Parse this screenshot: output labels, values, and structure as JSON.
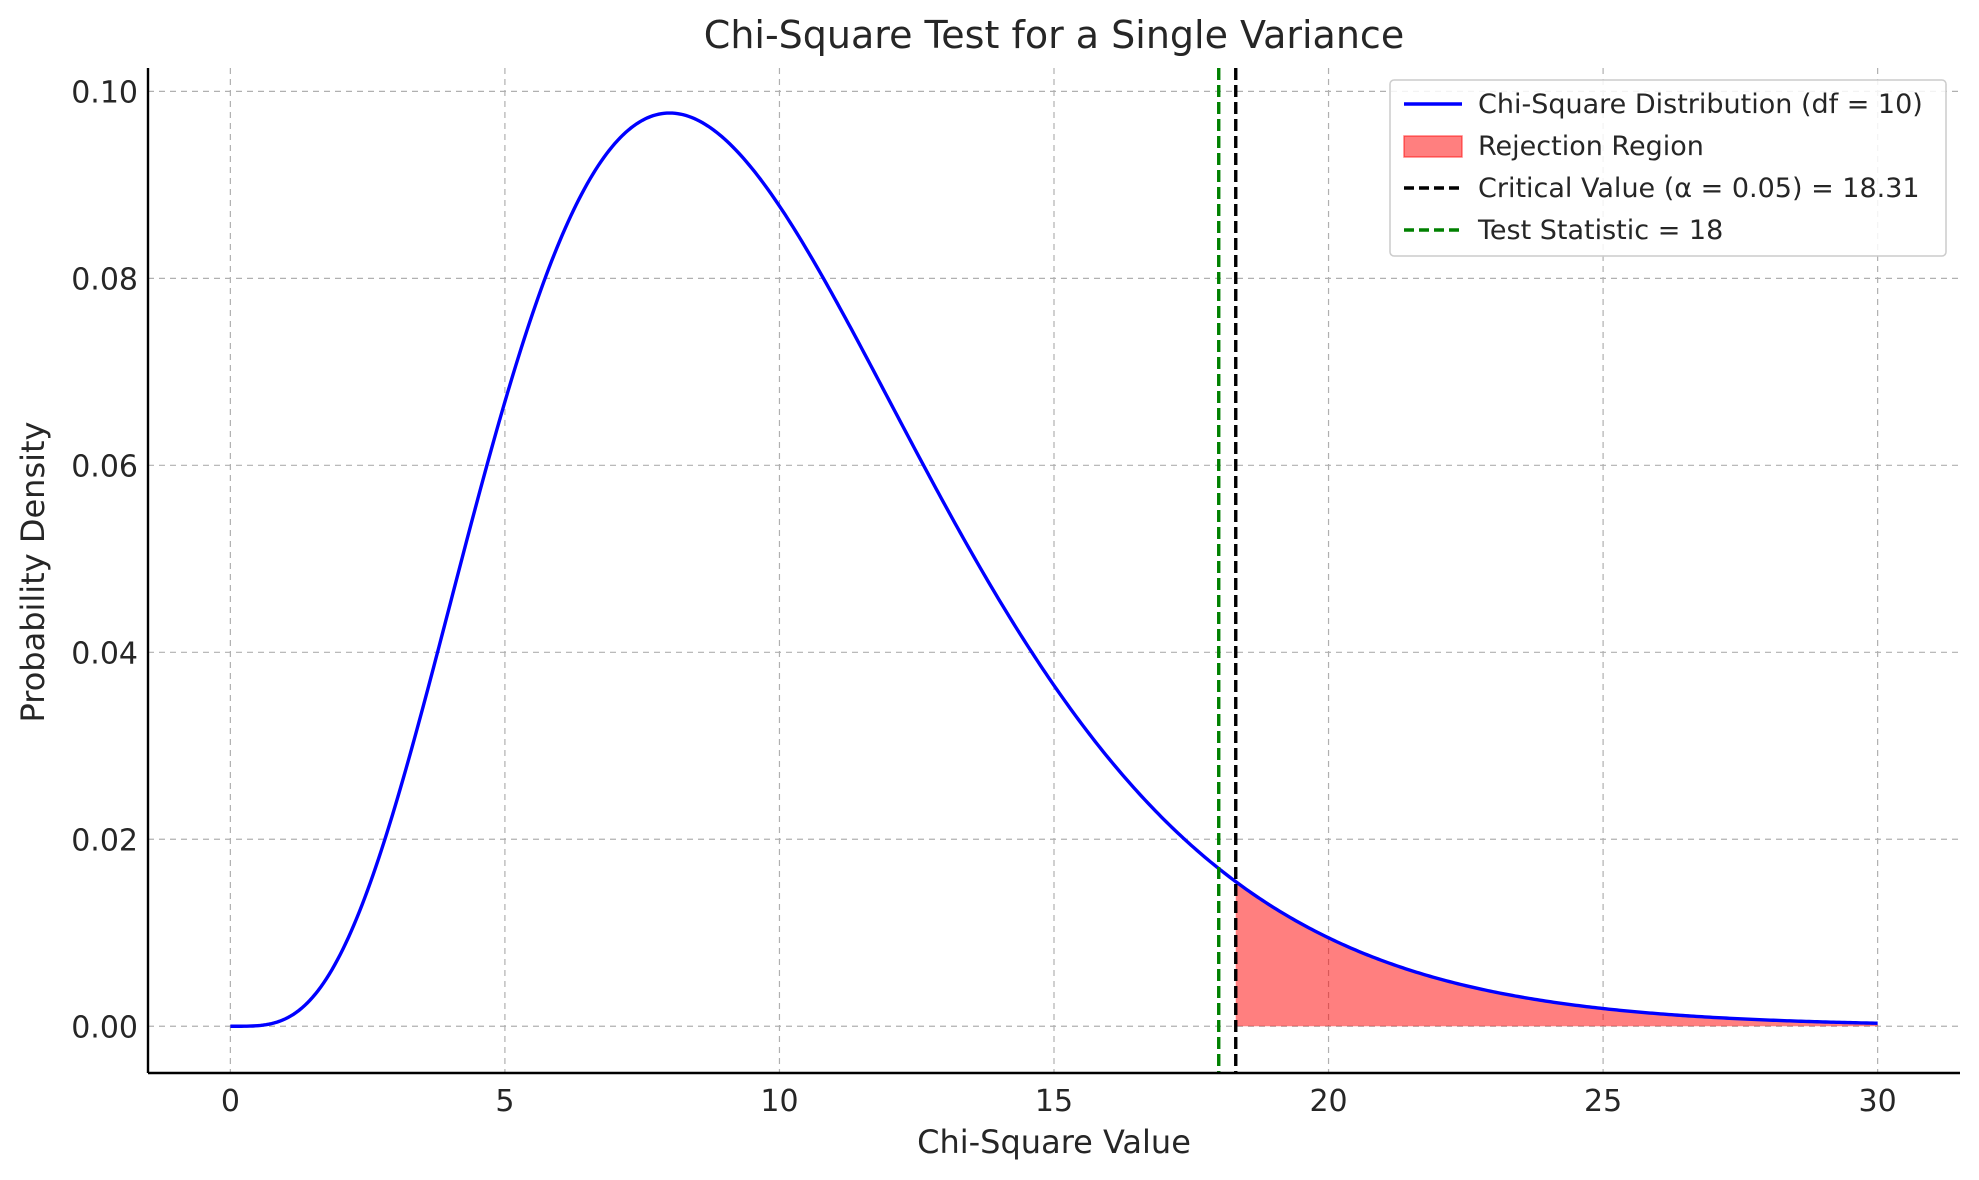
{
  "chart_data": {
    "type": "line",
    "title": "Chi-Square Test for a Single Variance",
    "xlabel": "Chi-Square Value",
    "ylabel": "Probability Density",
    "xlim": [
      -1.5,
      31.5
    ],
    "ylim": [
      -0.005,
      0.1025
    ],
    "x_ticks": [
      0,
      5,
      10,
      15,
      20,
      25,
      30
    ],
    "y_ticks": [
      0.0,
      0.02,
      0.04,
      0.06,
      0.08,
      0.1
    ],
    "x_tick_labels": [
      "0",
      "5",
      "10",
      "15",
      "20",
      "25",
      "30"
    ],
    "y_tick_labels": [
      "0.00",
      "0.02",
      "0.04",
      "0.06",
      "0.08",
      "0.10"
    ],
    "grid": true,
    "legend_position": "top-right",
    "series": [
      {
        "name": "Chi-Square Distribution (df = 10)",
        "kind": "density-curve",
        "df": 10,
        "x_range": [
          0,
          30
        ],
        "color": "#0000ff"
      }
    ],
    "shaded_region": {
      "name": "Rejection Region",
      "x_from": 18.31,
      "x_to": 30,
      "color": "#ff0000",
      "opacity": 0.5
    },
    "vertical_lines": [
      {
        "name": "Critical Value (α = 0.05) = 18.31",
        "x": 18.31,
        "color": "#000000",
        "style": "dashed"
      },
      {
        "name": "Test Statistic = 18",
        "x": 18,
        "color": "#008000",
        "style": "dashed"
      }
    ]
  }
}
